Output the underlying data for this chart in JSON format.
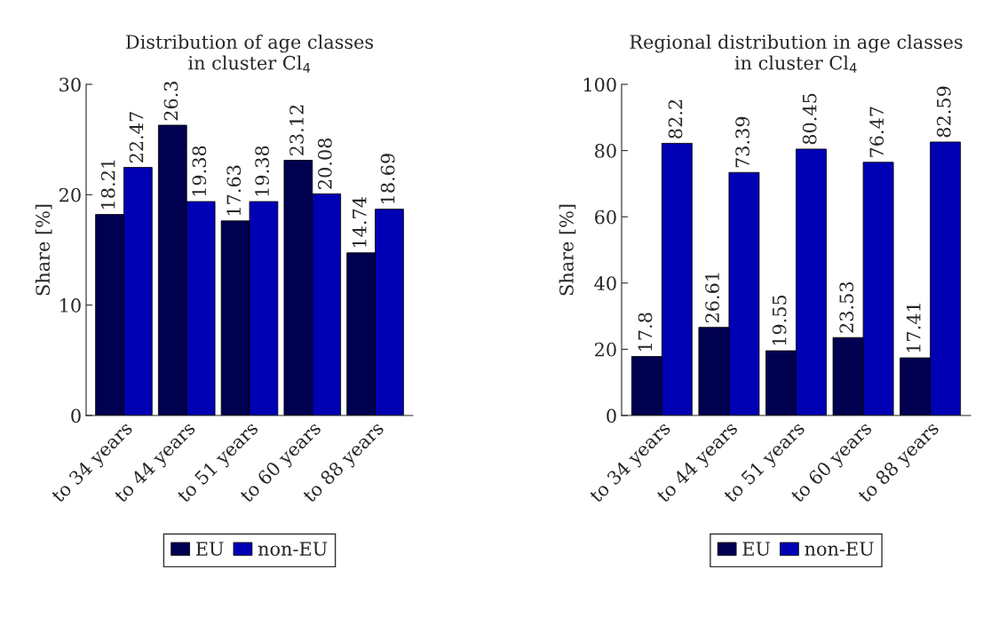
{
  "chart_data": [
    {
      "type": "bar",
      "title": "Distribution of age classes\nin cluster Cl$_{4}$",
      "ylabel": "Share [%]",
      "categories": [
        "to 34 years",
        "to 44 years",
        "to 51 years",
        "to 60 years",
        "to 88 years"
      ],
      "series": [
        {
          "name": "EU",
          "color": "#000050",
          "values": [
            18.21,
            26.3,
            17.63,
            23.12,
            14.74
          ]
        },
        {
          "name": "non-EU",
          "color": "#0000b4",
          "values": [
            22.47,
            19.38,
            19.38,
            20.08,
            18.69
          ]
        }
      ],
      "ylim": [
        0,
        30
      ],
      "yticks": [
        0,
        10,
        20,
        30
      ],
      "data_labels": true,
      "legend": "bottom",
      "grid": false
    },
    {
      "type": "bar",
      "title": "Regional distribution in age classes\nin cluster Cl$_{4}$",
      "ylabel": "Share [%]",
      "categories": [
        "to 34 years",
        "to 44 years",
        "to 51 years",
        "to 60 years",
        "to 88 years"
      ],
      "series": [
        {
          "name": "EU",
          "color": "#000050",
          "values": [
            17.8,
            26.61,
            19.55,
            23.53,
            17.41
          ]
        },
        {
          "name": "non-EU",
          "color": "#0000b4",
          "values": [
            82.2,
            73.39,
            80.45,
            76.47,
            82.59
          ]
        }
      ],
      "ylim": [
        0,
        100
      ],
      "yticks": [
        0,
        20,
        40,
        60,
        80,
        100
      ],
      "data_labels": true,
      "legend": "bottom",
      "grid": false
    }
  ]
}
